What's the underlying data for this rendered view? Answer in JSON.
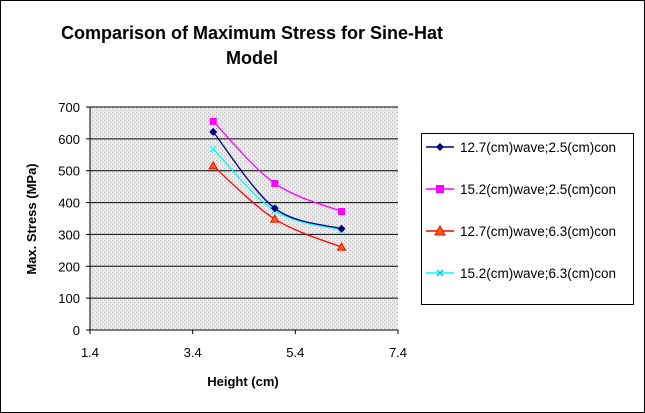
{
  "chart_data": {
    "type": "line",
    "title": "Comparison of Maximum Stress for Sine-Hat Model",
    "title_lines": [
      "Comparison of Maximum Stress for Sine-Hat",
      "Model"
    ],
    "xlabel": "Height (cm)",
    "ylabel": "Max. Stress (MPa)",
    "xlim": [
      1.4,
      7.4
    ],
    "ylim": [
      0,
      700
    ],
    "xticks": [
      "1.4",
      "3.4",
      "5.4",
      "7.4"
    ],
    "yticks": [
      "0",
      "100",
      "200",
      "300",
      "400",
      "500",
      "600",
      "700"
    ],
    "grid": "horizontal major gridlines",
    "smoothed": true,
    "legend_position": "right",
    "x": [
      3.8,
      5.0,
      6.3
    ],
    "series": [
      {
        "name": "12.7(cm)wave;2.5(cm)con",
        "values": [
          622,
          382,
          318
        ],
        "color": "#000080",
        "marker": "diamond"
      },
      {
        "name": "15.2(cm)wave;2.5(cm)con",
        "values": [
          655,
          460,
          372
        ],
        "color": "#ff00ff",
        "marker": "square"
      },
      {
        "name": "12.7(cm)wave;6.3(cm)con",
        "values": [
          515,
          348,
          260
        ],
        "color": "#ff0000",
        "marker": "triangle"
      },
      {
        "name": "15.2(cm)wave;6.3(cm)con",
        "values": [
          568,
          374,
          314
        ],
        "color": "#00ffff",
        "marker": "x"
      }
    ]
  }
}
